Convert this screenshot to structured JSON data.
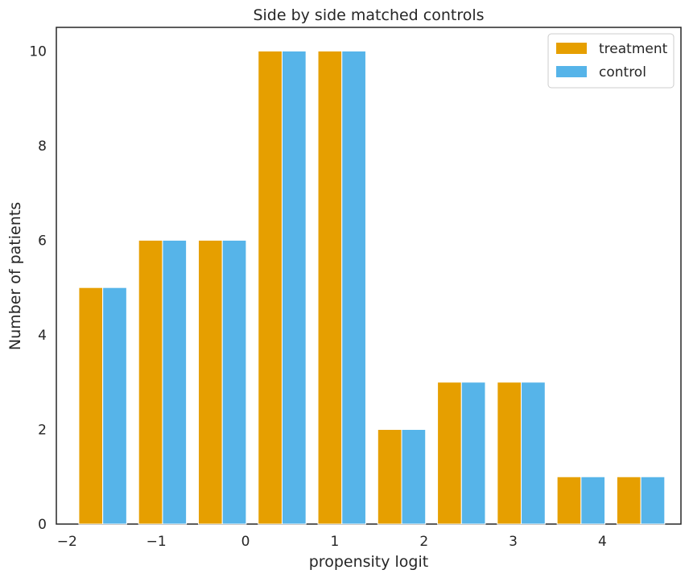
{
  "chart_data": {
    "type": "bar",
    "title": "Side by side matched controls",
    "xlabel": "propensity logit",
    "ylabel": "Number of patients",
    "x_ticks": [
      "−2",
      "−1",
      "0",
      "1",
      "2",
      "3",
      "4"
    ],
    "y_ticks": [
      "0",
      "2",
      "4",
      "6",
      "8",
      "10"
    ],
    "xlim": [
      -2.12,
      4.88
    ],
    "ylim": [
      0,
      10.5
    ],
    "bin_centers": [
      -1.6,
      -0.93,
      -0.26,
      0.41,
      1.08,
      1.75,
      2.42,
      3.09,
      3.76,
      4.43
    ],
    "series": [
      {
        "name": "treatment",
        "color": "#e69f00",
        "values": [
          5,
          6,
          6,
          10,
          10,
          2,
          3,
          3,
          1,
          1
        ]
      },
      {
        "name": "control",
        "color": "#56b4e9",
        "values": [
          5,
          6,
          6,
          10,
          10,
          2,
          3,
          3,
          1,
          1
        ]
      }
    ],
    "legend_position": "top-right",
    "grid": false
  }
}
